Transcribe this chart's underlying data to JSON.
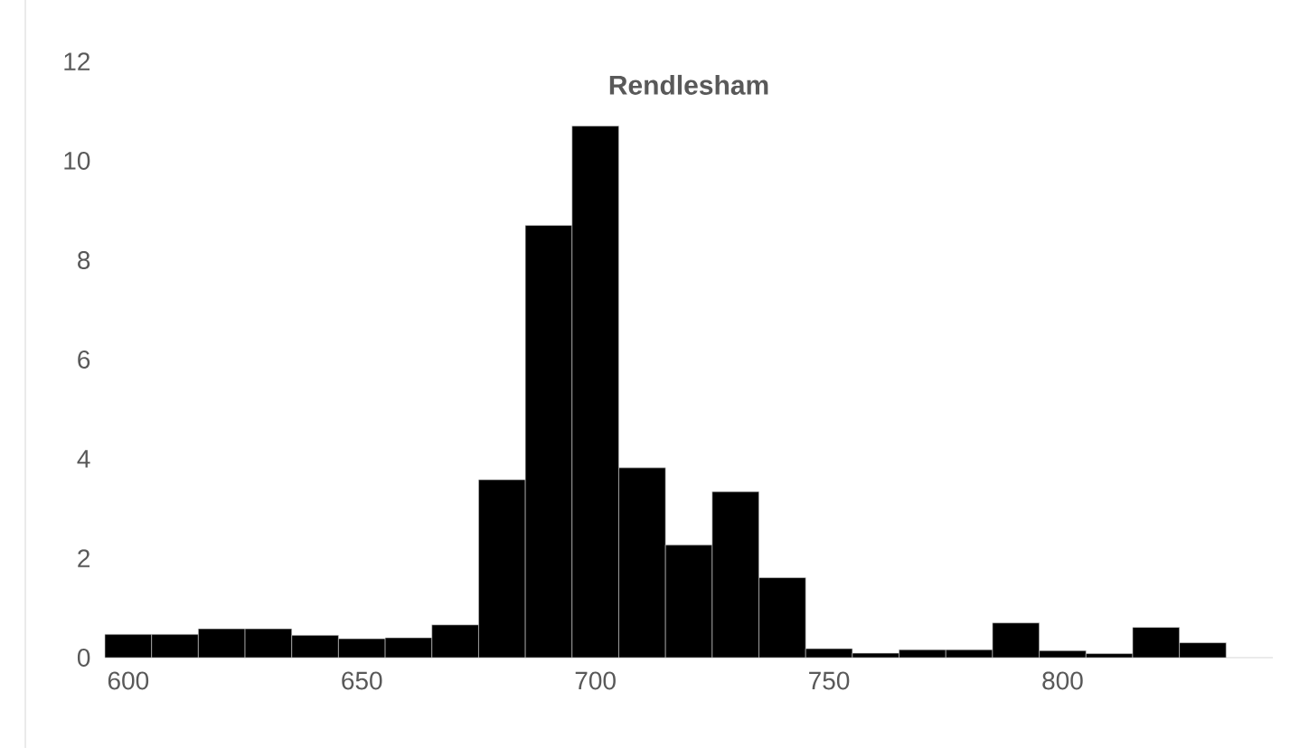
{
  "chart_data": {
    "type": "histogram",
    "title": "Rendlesham",
    "bins": [
      595,
      605,
      615,
      625,
      635,
      645,
      655,
      665,
      675,
      685,
      695,
      705,
      715,
      725,
      735,
      745,
      755,
      765,
      775,
      785,
      795,
      805,
      815,
      825,
      835
    ],
    "values": [
      0.47,
      0.47,
      0.58,
      0.58,
      0.45,
      0.38,
      0.4,
      0.66,
      3.58,
      8.7,
      10.7,
      3.82,
      2.27,
      3.34,
      1.61,
      0.18,
      0.09,
      0.16,
      0.16,
      0.7,
      0.14,
      0.08,
      0.61,
      0.3
    ],
    "color": "#000000",
    "xlim": [
      595,
      845
    ],
    "xticks": [
      600,
      650,
      700,
      750,
      800
    ],
    "ylim": [
      0,
      12
    ],
    "yticks": [
      0,
      2,
      4,
      6,
      8,
      10,
      12
    ],
    "grid": false
  }
}
